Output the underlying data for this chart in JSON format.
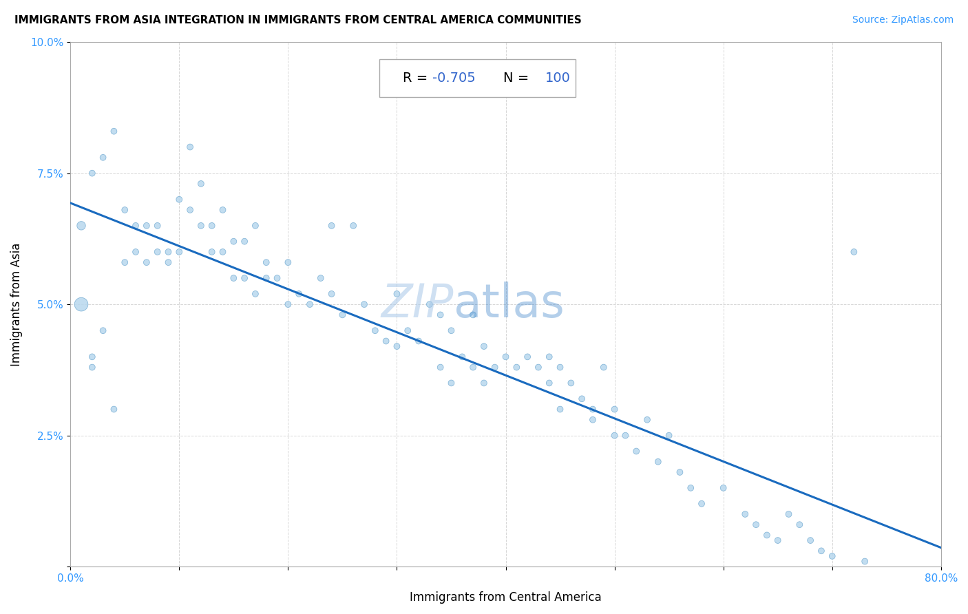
{
  "title": "IMMIGRANTS FROM ASIA INTEGRATION IN IMMIGRANTS FROM CENTRAL AMERICA COMMUNITIES",
  "source": "Source: ZipAtlas.com",
  "xlabel": "Immigrants from Central America",
  "ylabel": "Immigrants from Asia",
  "R": -0.705,
  "N": 100,
  "xlim": [
    0.0,
    0.8
  ],
  "ylim": [
    0.0,
    0.1
  ],
  "xticks": [
    0.0,
    0.1,
    0.2,
    0.3,
    0.4,
    0.5,
    0.6,
    0.7,
    0.8
  ],
  "xticklabels": [
    "0.0%",
    "",
    "",
    "",
    "",
    "",
    "",
    "",
    "80.0%"
  ],
  "yticks": [
    0.0,
    0.025,
    0.05,
    0.075,
    0.1
  ],
  "yticklabels": [
    "",
    "2.5%",
    "5.0%",
    "7.5%",
    "10.0%"
  ],
  "scatter_color": "#b8d8ee",
  "scatter_edge_color": "#7aafd4",
  "line_color": "#1a6bbf",
  "scatter_x": [
    0.01,
    0.01,
    0.02,
    0.02,
    0.02,
    0.03,
    0.03,
    0.04,
    0.04,
    0.05,
    0.05,
    0.06,
    0.06,
    0.07,
    0.07,
    0.08,
    0.08,
    0.09,
    0.09,
    0.1,
    0.1,
    0.11,
    0.11,
    0.12,
    0.12,
    0.13,
    0.13,
    0.14,
    0.14,
    0.15,
    0.15,
    0.16,
    0.16,
    0.17,
    0.17,
    0.18,
    0.18,
    0.19,
    0.2,
    0.2,
    0.21,
    0.22,
    0.23,
    0.24,
    0.24,
    0.25,
    0.26,
    0.27,
    0.28,
    0.29,
    0.3,
    0.3,
    0.31,
    0.32,
    0.33,
    0.34,
    0.34,
    0.35,
    0.35,
    0.36,
    0.37,
    0.37,
    0.38,
    0.38,
    0.39,
    0.4,
    0.41,
    0.42,
    0.43,
    0.44,
    0.44,
    0.45,
    0.45,
    0.46,
    0.47,
    0.48,
    0.48,
    0.49,
    0.5,
    0.5,
    0.51,
    0.52,
    0.53,
    0.54,
    0.55,
    0.56,
    0.57,
    0.58,
    0.6,
    0.62,
    0.63,
    0.64,
    0.65,
    0.66,
    0.67,
    0.68,
    0.69,
    0.7,
    0.72,
    0.73
  ],
  "scatter_y": [
    0.065,
    0.05,
    0.075,
    0.04,
    0.038,
    0.078,
    0.045,
    0.083,
    0.03,
    0.068,
    0.058,
    0.065,
    0.06,
    0.065,
    0.058,
    0.065,
    0.06,
    0.06,
    0.058,
    0.07,
    0.06,
    0.08,
    0.068,
    0.073,
    0.065,
    0.065,
    0.06,
    0.068,
    0.06,
    0.062,
    0.055,
    0.062,
    0.055,
    0.065,
    0.052,
    0.055,
    0.058,
    0.055,
    0.058,
    0.05,
    0.052,
    0.05,
    0.055,
    0.065,
    0.052,
    0.048,
    0.065,
    0.05,
    0.045,
    0.043,
    0.052,
    0.042,
    0.045,
    0.043,
    0.05,
    0.048,
    0.038,
    0.045,
    0.035,
    0.04,
    0.048,
    0.038,
    0.042,
    0.035,
    0.038,
    0.04,
    0.038,
    0.04,
    0.038,
    0.04,
    0.035,
    0.038,
    0.03,
    0.035,
    0.032,
    0.03,
    0.028,
    0.038,
    0.025,
    0.03,
    0.025,
    0.022,
    0.028,
    0.02,
    0.025,
    0.018,
    0.015,
    0.012,
    0.015,
    0.01,
    0.008,
    0.006,
    0.005,
    0.01,
    0.008,
    0.005,
    0.003,
    0.002,
    0.06,
    0.001
  ],
  "scatter_sizes": [
    80,
    200,
    40,
    40,
    40,
    40,
    40,
    40,
    40,
    40,
    40,
    40,
    40,
    40,
    40,
    40,
    40,
    40,
    40,
    40,
    40,
    40,
    40,
    40,
    40,
    40,
    40,
    40,
    40,
    40,
    40,
    40,
    40,
    40,
    40,
    40,
    40,
    40,
    40,
    40,
    40,
    40,
    40,
    40,
    40,
    40,
    40,
    40,
    40,
    40,
    40,
    40,
    40,
    40,
    40,
    40,
    40,
    40,
    40,
    40,
    40,
    40,
    40,
    40,
    40,
    40,
    40,
    40,
    40,
    40,
    40,
    40,
    40,
    40,
    40,
    40,
    40,
    40,
    40,
    40,
    40,
    40,
    40,
    40,
    40,
    40,
    40,
    40,
    40,
    40,
    40,
    40,
    40,
    40,
    40,
    40,
    40,
    40,
    40,
    40
  ]
}
